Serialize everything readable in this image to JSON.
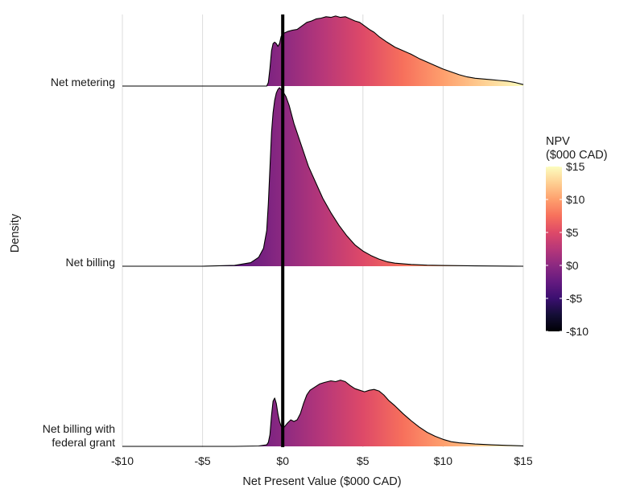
{
  "chart_data": {
    "type": "ridgeline",
    "xlabel": "Net Present Value ($000 CAD)",
    "ylabel": "Density",
    "xlim": [
      -10,
      15
    ],
    "x_ticks": [
      -10,
      -5,
      0,
      5,
      10,
      15
    ],
    "x_tick_labels": [
      "-$10",
      "-$5",
      "$0",
      "$5",
      "$10",
      "$15"
    ],
    "grid": "vertical major",
    "reference_line_x": 0,
    "series": [
      {
        "name": "Net metering",
        "label_lines": [
          "Net metering"
        ],
        "density": [
          [
            -10.0,
            0.0
          ],
          [
            -1.0,
            0.0
          ],
          [
            -0.9,
            0.05
          ],
          [
            -0.8,
            0.25
          ],
          [
            -0.7,
            0.5
          ],
          [
            -0.6,
            0.6
          ],
          [
            -0.5,
            0.62
          ],
          [
            -0.4,
            0.6
          ],
          [
            -0.3,
            0.56
          ],
          [
            -0.2,
            0.6
          ],
          [
            -0.1,
            0.7
          ],
          [
            0.0,
            0.74
          ],
          [
            0.3,
            0.77
          ],
          [
            0.6,
            0.79
          ],
          [
            0.9,
            0.8
          ],
          [
            1.2,
            0.85
          ],
          [
            1.5,
            0.9
          ],
          [
            1.8,
            0.92
          ],
          [
            2.1,
            0.95
          ],
          [
            2.4,
            0.96
          ],
          [
            2.7,
            0.98
          ],
          [
            3.0,
            0.97
          ],
          [
            3.3,
            0.99
          ],
          [
            3.6,
            0.97
          ],
          [
            3.9,
            0.98
          ],
          [
            4.2,
            0.95
          ],
          [
            4.5,
            0.92
          ],
          [
            4.8,
            0.9
          ],
          [
            5.1,
            0.85
          ],
          [
            5.4,
            0.8
          ],
          [
            5.7,
            0.76
          ],
          [
            6.0,
            0.7
          ],
          [
            6.5,
            0.62
          ],
          [
            7.0,
            0.55
          ],
          [
            7.5,
            0.5
          ],
          [
            8.0,
            0.45
          ],
          [
            8.5,
            0.39
          ],
          [
            9.0,
            0.34
          ],
          [
            9.5,
            0.29
          ],
          [
            10.0,
            0.24
          ],
          [
            10.5,
            0.2
          ],
          [
            11.0,
            0.16
          ],
          [
            11.5,
            0.13
          ],
          [
            12.0,
            0.11
          ],
          [
            12.5,
            0.1
          ],
          [
            13.0,
            0.09
          ],
          [
            13.5,
            0.08
          ],
          [
            14.0,
            0.07
          ],
          [
            14.5,
            0.05
          ],
          [
            15.0,
            0.02
          ]
        ]
      },
      {
        "name": "Net billing",
        "label_lines": [
          "Net billing"
        ],
        "density": [
          [
            -10.0,
            0.0
          ],
          [
            -5.0,
            0.0
          ],
          [
            -3.0,
            0.005
          ],
          [
            -2.0,
            0.02
          ],
          [
            -1.5,
            0.05
          ],
          [
            -1.2,
            0.1
          ],
          [
            -1.0,
            0.2
          ],
          [
            -0.9,
            0.35
          ],
          [
            -0.8,
            0.55
          ],
          [
            -0.7,
            0.75
          ],
          [
            -0.6,
            0.86
          ],
          [
            -0.5,
            0.93
          ],
          [
            -0.4,
            0.97
          ],
          [
            -0.3,
            0.99
          ],
          [
            -0.2,
            1.0
          ],
          [
            -0.1,
            0.99
          ],
          [
            0.0,
            0.98
          ],
          [
            0.2,
            0.95
          ],
          [
            0.4,
            0.9
          ],
          [
            0.7,
            0.8
          ],
          [
            1.0,
            0.72
          ],
          [
            1.3,
            0.64
          ],
          [
            1.6,
            0.56
          ],
          [
            2.0,
            0.48
          ],
          [
            2.5,
            0.38
          ],
          [
            3.0,
            0.3
          ],
          [
            3.5,
            0.23
          ],
          [
            4.0,
            0.17
          ],
          [
            4.5,
            0.12
          ],
          [
            5.0,
            0.085
          ],
          [
            5.5,
            0.06
          ],
          [
            6.0,
            0.04
          ],
          [
            6.5,
            0.025
          ],
          [
            7.0,
            0.017
          ],
          [
            8.0,
            0.01
          ],
          [
            9.0,
            0.006
          ],
          [
            10.0,
            0.004
          ],
          [
            12.0,
            0.002
          ],
          [
            15.0,
            0.0
          ]
        ]
      },
      {
        "name": "Net billing with federal grant",
        "label_lines": [
          "Net billing with",
          "federal grant"
        ],
        "density": [
          [
            -10.0,
            0.0
          ],
          [
            -3.0,
            0.0
          ],
          [
            -1.5,
            0.005
          ],
          [
            -1.0,
            0.02
          ],
          [
            -0.9,
            0.05
          ],
          [
            -0.8,
            0.15
          ],
          [
            -0.7,
            0.4
          ],
          [
            -0.6,
            0.58
          ],
          [
            -0.5,
            0.62
          ],
          [
            -0.4,
            0.55
          ],
          [
            -0.3,
            0.42
          ],
          [
            -0.2,
            0.32
          ],
          [
            -0.1,
            0.26
          ],
          [
            0.0,
            0.24
          ],
          [
            0.1,
            0.25
          ],
          [
            0.3,
            0.3
          ],
          [
            0.5,
            0.34
          ],
          [
            0.7,
            0.32
          ],
          [
            0.9,
            0.34
          ],
          [
            1.1,
            0.42
          ],
          [
            1.3,
            0.55
          ],
          [
            1.5,
            0.66
          ],
          [
            1.7,
            0.72
          ],
          [
            2.0,
            0.76
          ],
          [
            2.3,
            0.8
          ],
          [
            2.6,
            0.82
          ],
          [
            3.0,
            0.84
          ],
          [
            3.3,
            0.83
          ],
          [
            3.6,
            0.85
          ],
          [
            3.9,
            0.83
          ],
          [
            4.2,
            0.78
          ],
          [
            4.5,
            0.74
          ],
          [
            4.8,
            0.72
          ],
          [
            5.1,
            0.7
          ],
          [
            5.4,
            0.72
          ],
          [
            5.7,
            0.73
          ],
          [
            6.0,
            0.71
          ],
          [
            6.3,
            0.66
          ],
          [
            6.6,
            0.59
          ],
          [
            7.0,
            0.52
          ],
          [
            7.5,
            0.42
          ],
          [
            8.0,
            0.33
          ],
          [
            8.5,
            0.25
          ],
          [
            9.0,
            0.18
          ],
          [
            9.5,
            0.13
          ],
          [
            10.0,
            0.09
          ],
          [
            10.5,
            0.06
          ],
          [
            11.0,
            0.045
          ],
          [
            12.0,
            0.03
          ],
          [
            13.0,
            0.02
          ],
          [
            14.0,
            0.012
          ],
          [
            15.0,
            0.006
          ]
        ]
      }
    ],
    "legend": {
      "title_lines": [
        "NPV",
        "($000 CAD)"
      ],
      "range": [
        -10,
        15
      ],
      "ticks": [
        15,
        10,
        5,
        0,
        -5,
        -10
      ],
      "tick_labels": [
        "$15",
        "$10",
        "$5",
        "$0",
        "-$5",
        "-$10"
      ],
      "placement": "right"
    },
    "colors": {
      "colormap": "magma",
      "outline": "#000000",
      "grid": "#dcdcdc",
      "reference_line": "#000000"
    }
  }
}
